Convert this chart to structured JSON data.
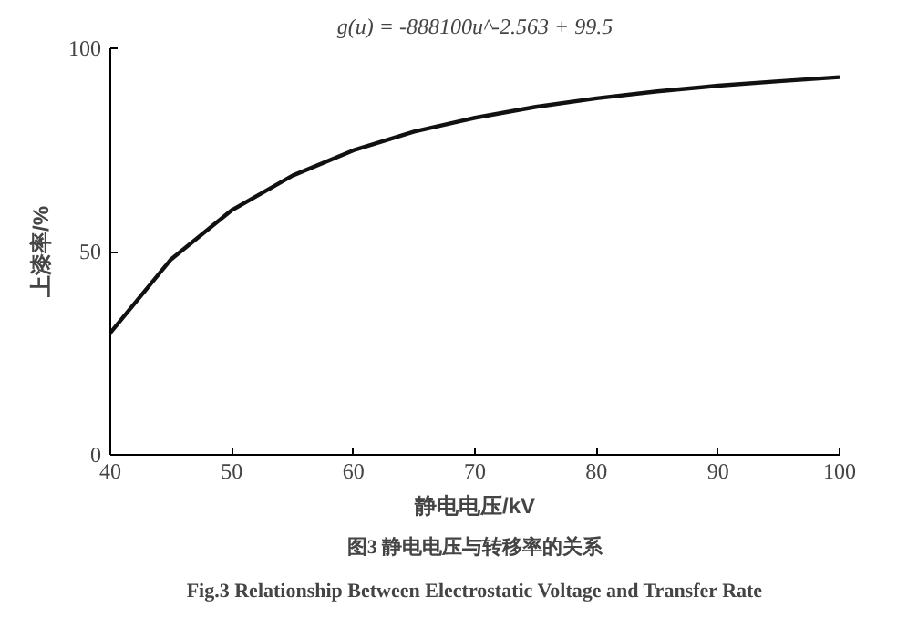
{
  "chart_data": {
    "type": "line",
    "title": "g(u) = -888100u^-2.563 + 99.5",
    "xlabel": "静电电压/kV",
    "ylabel": "上漆率/%",
    "x": [
      40,
      45,
      50,
      55,
      60,
      65,
      70,
      75,
      80,
      85,
      90,
      95,
      100
    ],
    "series": [
      {
        "color": "#111111",
        "values": [
          30.0,
          48.1,
          60.2,
          68.7,
          74.9,
          79.5,
          82.9,
          85.6,
          87.7,
          89.4,
          90.8,
          91.9,
          92.9
        ]
      }
    ],
    "xlim": [
      40,
      100
    ],
    "ylim": [
      0,
      100
    ],
    "xticks": [
      40,
      50,
      60,
      70,
      80,
      90,
      100
    ],
    "yticks": [
      0,
      50,
      100
    ],
    "grid": false,
    "annotations": [
      "图3 静电电压与转移率的关系",
      "Fig.3 Relationship Between Electrostatic Voltage and Transfer Rate"
    ]
  }
}
